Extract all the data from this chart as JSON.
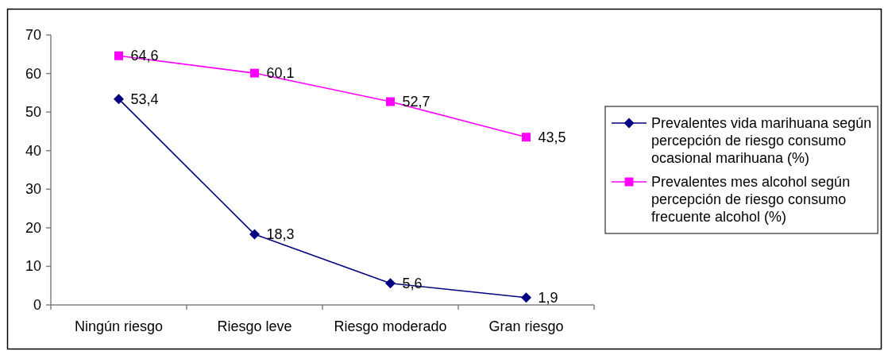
{
  "chart_data": {
    "type": "line",
    "categories": [
      "Ningún riesgo",
      "Riesgo leve",
      "Riesgo moderado",
      "Gran riesgo"
    ],
    "series": [
      {
        "name": "Prevalentes vida marihuana según percepción de riesgo consumo ocasional marihuana (%)",
        "color": "#000080",
        "marker": "diamond",
        "values": [
          53.4,
          18.3,
          5.6,
          1.9
        ],
        "value_labels": [
          "53,4",
          "18,3",
          "5,6",
          "1,9"
        ]
      },
      {
        "name": "Prevalentes mes alcohol según percepción de riesgo consumo frecuente alcohol (%)",
        "color": "#ff00ff",
        "marker": "square",
        "values": [
          64.6,
          60.1,
          52.7,
          43.5
        ],
        "value_labels": [
          "64,6",
          "60,1",
          "52,7",
          "43,5"
        ]
      }
    ],
    "ylim": [
      0,
      70
    ],
    "yticks": [
      0,
      10,
      20,
      30,
      40,
      50,
      60,
      70
    ],
    "legend": "right"
  }
}
